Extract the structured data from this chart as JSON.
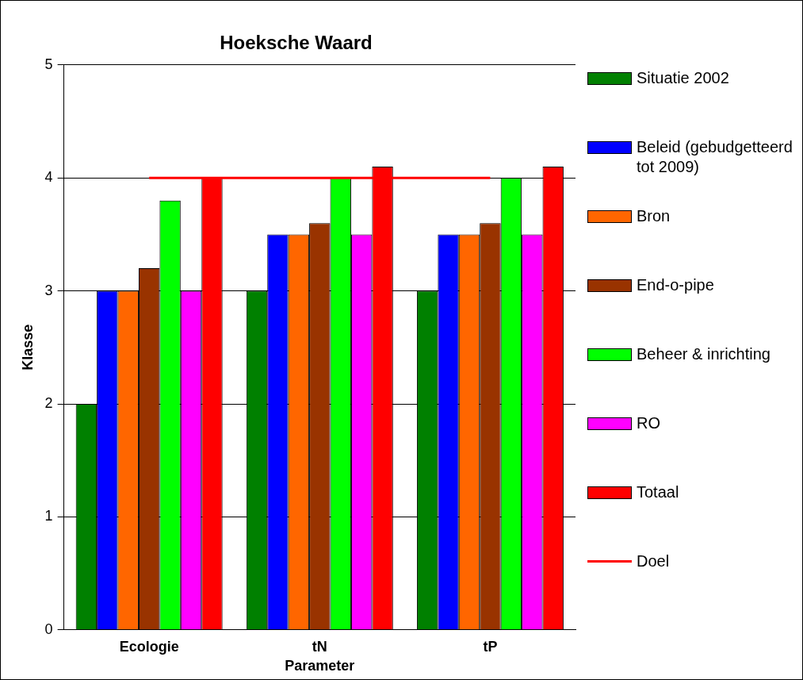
{
  "chart_data": {
    "type": "bar",
    "title": "Hoeksche Waard",
    "xlabel": "Parameter",
    "ylabel": "Klasse",
    "categories": [
      "Ecologie",
      "tN",
      "tP"
    ],
    "ylim": [
      0,
      5
    ],
    "yticks": [
      0,
      1,
      2,
      3,
      4,
      5
    ],
    "grid": "y",
    "legend": "right",
    "series": [
      {
        "name": "Situatie 2002",
        "color": "#008000",
        "values": [
          2,
          3,
          3
        ]
      },
      {
        "name": "Beleid (gebudgetteerd tot 2009)",
        "color": "#0000ff",
        "values": [
          3,
          3.5,
          3.5
        ]
      },
      {
        "name": "Bron",
        "color": "#ff6600",
        "values": [
          3,
          3.5,
          3.5
        ]
      },
      {
        "name": "End-o-pipe",
        "color": "#993300",
        "values": [
          3.2,
          3.6,
          3.6
        ]
      },
      {
        "name": "Beheer & inrichting",
        "color": "#00ff00",
        "values": [
          3.8,
          4,
          4
        ]
      },
      {
        "name": "RO",
        "color": "#ff00ff",
        "values": [
          3,
          3.5,
          3.5
        ]
      },
      {
        "name": "Totaal",
        "color": "#ff0000",
        "values": [
          4,
          4.1,
          4.1
        ]
      },
      {
        "name": "Doel",
        "color": "#ff0000",
        "type": "line",
        "values": [
          4,
          4,
          4
        ]
      }
    ]
  }
}
